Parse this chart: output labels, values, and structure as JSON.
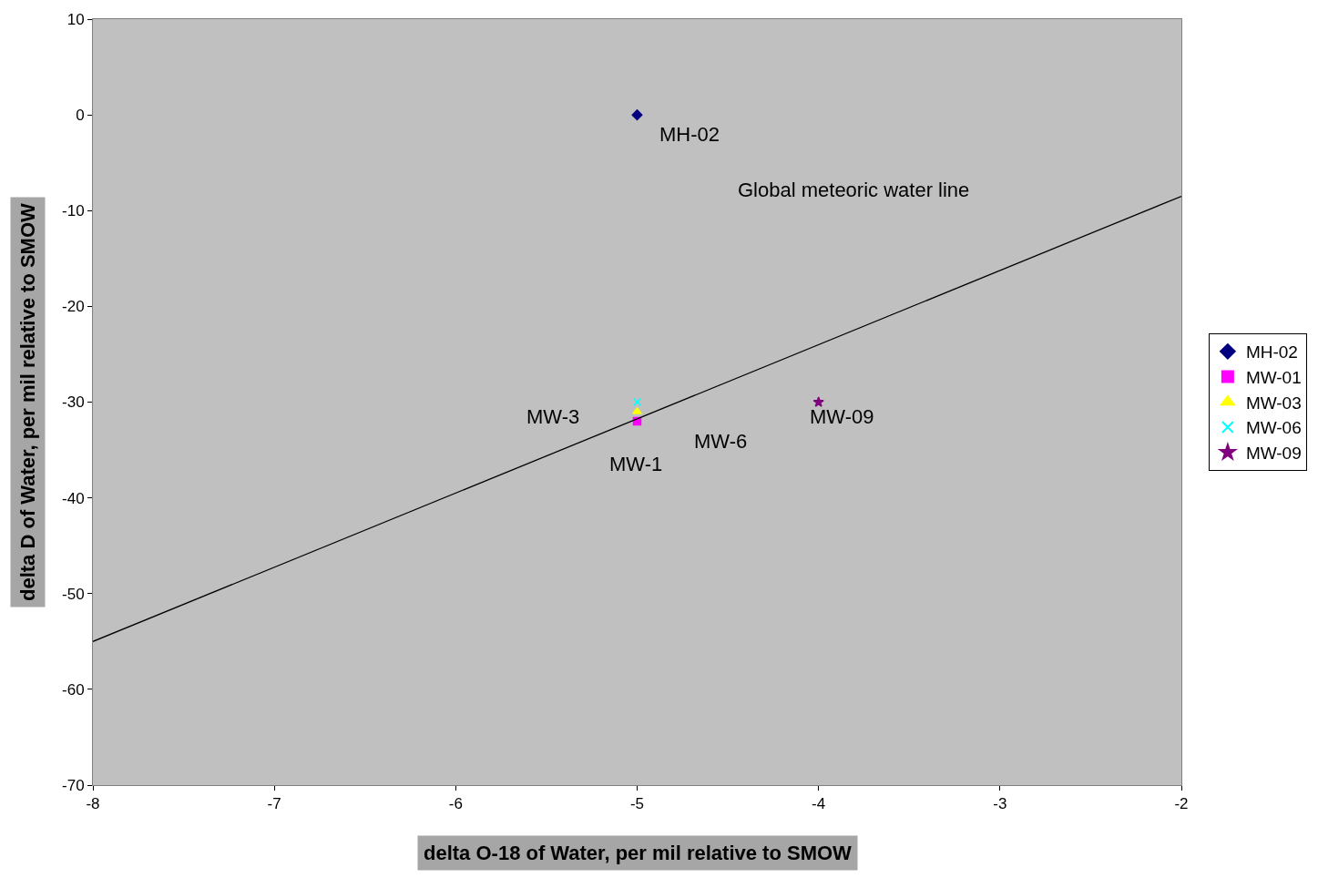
{
  "chart_data": {
    "type": "scatter",
    "xlabel": "delta O-18 of Water, per mil relative to SMOW",
    "ylabel": "delta D of Water, per mil relative to SMOW",
    "xlim": [
      -8,
      -2
    ],
    "xticks": [
      -8,
      -7,
      -6,
      -5,
      -4,
      -3,
      -2
    ],
    "ylim": [
      -70,
      10
    ],
    "yticks": [
      -70,
      -60,
      -50,
      -40,
      -30,
      -20,
      -10,
      0,
      10
    ],
    "grid": false,
    "legend": "right",
    "series": [
      {
        "name": "MH-02",
        "color": "#000080",
        "marker": "diamond",
        "x": [
          -5
        ],
        "values": [
          0
        ]
      },
      {
        "name": "MW-01",
        "color": "#ff00ff",
        "marker": "square",
        "x": [
          -5
        ],
        "values": [
          -32
        ]
      },
      {
        "name": "MW-03",
        "color": "#ffff00",
        "marker": "triangle",
        "x": [
          -5
        ],
        "values": [
          -31
        ]
      },
      {
        "name": "MW-06",
        "color": "#00ffff",
        "marker": "cross",
        "x": [
          -5
        ],
        "values": [
          -30
        ]
      },
      {
        "name": "MW-09",
        "color": "#800080",
        "marker": "star",
        "x": [
          -4
        ],
        "values": [
          -30
        ]
      },
      {
        "type": "line",
        "color": "#000000",
        "marker": "none",
        "x": [
          -8,
          -2
        ],
        "values": [
          -55,
          -8.5
        ]
      }
    ],
    "annotations": [
      "MH-02",
      "Global meteoric water line",
      "MW-3",
      "MW-1",
      "MW-6",
      "MW-09"
    ]
  }
}
